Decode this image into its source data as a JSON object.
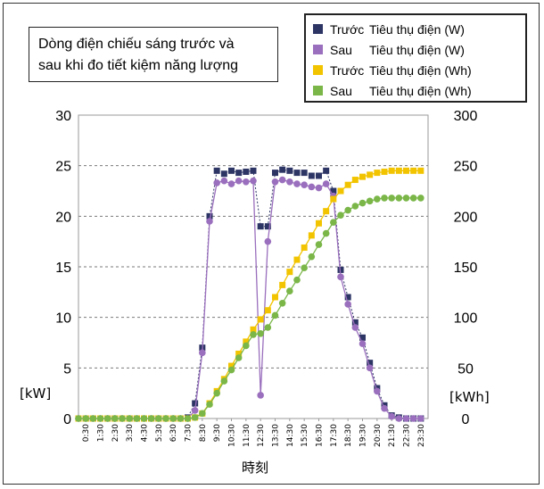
{
  "title_lines": [
    "Dòng điện chiếu sáng trước và",
    "sau khi đo tiết kiệm năng lượng"
  ],
  "chart_data": {
    "type": "line",
    "xlabel": "時刻",
    "ylabel_left": "[kW]",
    "ylabel_right": "[kWh]",
    "ylim_left": [
      0,
      30
    ],
    "ylim_right": [
      0,
      300
    ],
    "yticks_left": [
      0,
      5,
      10,
      15,
      20,
      25,
      30
    ],
    "yticks_right": [
      0,
      50,
      100,
      150,
      200,
      250,
      300
    ],
    "right_tick_labels": [
      "0",
      "50",
      "100",
      "150",
      "200",
      "250",
      "300"
    ],
    "x_tick_labels": [
      "0:30",
      "1:30",
      "2:30",
      "3:30",
      "4:30",
      "5:30",
      "6:30",
      "7:30",
      "8:30",
      "9:30",
      "10:30",
      "11:30",
      "12:30",
      "13:30",
      "14:30",
      "15:30",
      "16:30",
      "17:30",
      "18:30",
      "19:30",
      "20:30",
      "21:30",
      "22:30",
      "23:30"
    ],
    "x_values": [
      0,
      0.5,
      1,
      1.5,
      2,
      2.5,
      3,
      3.5,
      4,
      4.5,
      5,
      5.5,
      6,
      6.5,
      7,
      7.5,
      8,
      8.5,
      9,
      9.5,
      10,
      10.5,
      11,
      11.5,
      12,
      12.5,
      13,
      13.5,
      14,
      14.5,
      15,
      15.5,
      16,
      16.5,
      17,
      17.5,
      18,
      18.5,
      19,
      19.5,
      20,
      20.5,
      21,
      21.5,
      22,
      22.5,
      23,
      23.5
    ],
    "legend": [
      {
        "prefix": "Trước",
        "label": "Tiêu thụ điện (W)",
        "color": "#2d3565"
      },
      {
        "prefix": "Sau",
        "label": "Tiêu thụ điện (W)",
        "color": "#9a6fbd"
      },
      {
        "prefix": "Trước",
        "label": "Tiêu thụ điện (Wh)",
        "color": "#f2c400"
      },
      {
        "prefix": "Sau",
        "label": "Tiêu thụ điện (Wh)",
        "color": "#7ab648"
      }
    ],
    "series": [
      {
        "name": "Trước Tiêu thụ điện (W)",
        "axis": "left",
        "marker": "square",
        "color": "#2d3565",
        "values": [
          0,
          0,
          0,
          0,
          0,
          0,
          0,
          0,
          0,
          0,
          0,
          0,
          0,
          0,
          0,
          0.1,
          1.5,
          7,
          20,
          24.5,
          24.2,
          24.5,
          24.3,
          24.4,
          24.5,
          19,
          19,
          24.3,
          24.6,
          24.5,
          24.3,
          24.3,
          24,
          24,
          24.5,
          22.5,
          14.7,
          12,
          9.5,
          8,
          5.5,
          3,
          1.3,
          0.3,
          0.1,
          0,
          0,
          0
        ]
      },
      {
        "name": "Sau Tiêu thụ điện (W)",
        "axis": "left",
        "marker": "circle",
        "color": "#9a6fbd",
        "values": [
          0,
          0,
          0,
          0,
          0,
          0,
          0,
          0,
          0,
          0,
          0,
          0,
          0,
          0,
          0,
          0,
          0.8,
          6.5,
          19.5,
          23.3,
          23.5,
          23.2,
          23.5,
          23.4,
          23.5,
          2.3,
          17.5,
          23.4,
          23.6,
          23.4,
          23.2,
          23.1,
          22.9,
          22.8,
          23.2,
          22.0,
          14.0,
          11.3,
          9.0,
          7.4,
          5.0,
          2.7,
          1.0,
          0.2,
          0,
          0,
          0,
          0
        ]
      },
      {
        "name": "Trước Tiêu thụ điện (Wh)",
        "axis": "right",
        "marker": "square",
        "color": "#f2c400",
        "values": [
          0,
          0,
          0,
          0,
          0,
          0,
          0,
          0,
          0,
          0,
          0,
          0,
          0,
          0,
          0,
          0,
          1,
          5,
          15,
          27,
          39,
          52,
          64,
          76,
          88,
          98,
          107,
          120,
          132,
          145,
          157,
          169,
          181,
          193,
          205,
          217,
          225,
          231,
          236,
          239,
          241,
          243,
          244,
          245,
          245,
          245,
          245,
          245
        ]
      },
      {
        "name": "Sau Tiêu thụ điện (Wh)",
        "axis": "right",
        "marker": "circle",
        "color": "#7ab648",
        "values": [
          0,
          0,
          0,
          0,
          0,
          0,
          0,
          0,
          0,
          0,
          0,
          0,
          0,
          0,
          0,
          0,
          1,
          5,
          14,
          25,
          37,
          48,
          60,
          72,
          83,
          84,
          90,
          102,
          114,
          126,
          137,
          149,
          160,
          172,
          183,
          194,
          201,
          206,
          210,
          213,
          215,
          217,
          218,
          218,
          218,
          218,
          218,
          218
        ]
      }
    ]
  }
}
